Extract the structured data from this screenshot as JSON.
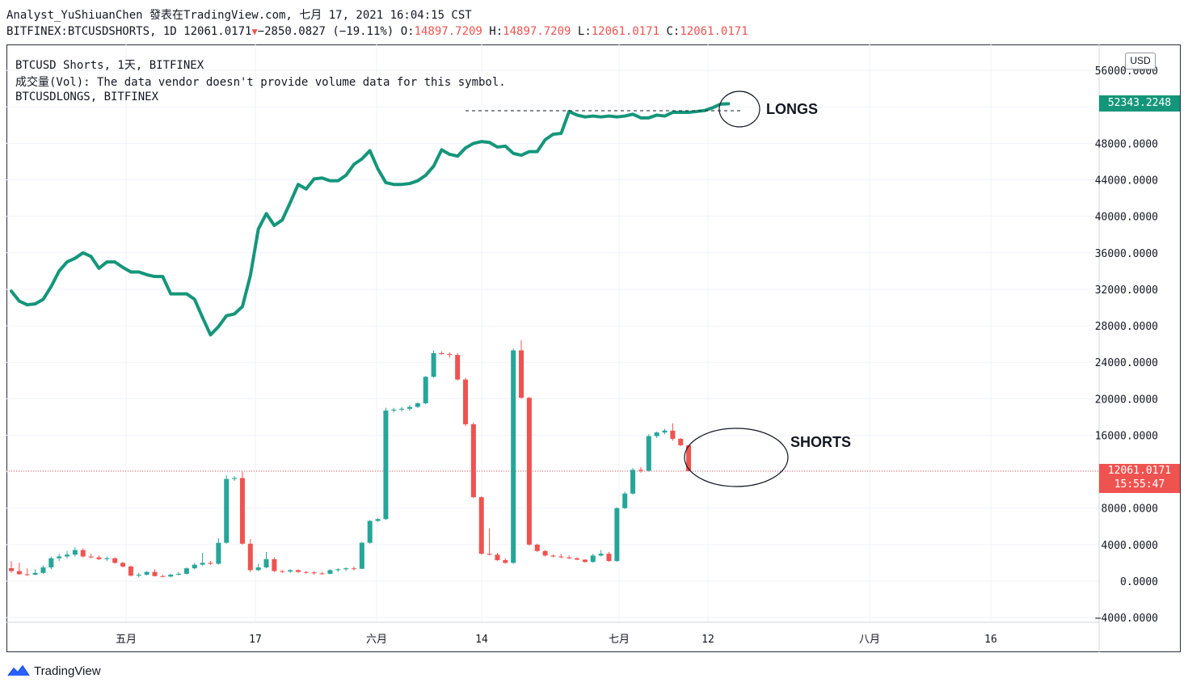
{
  "header": {
    "author_line": "Analyst_YuShiuanChen 發表在TradingView.com, 七月 17, 2021 16:04:15 CST",
    "symbol": "BITFINEX:BTCUSDSHORTS, 1D",
    "last": "12061.0171",
    "change": "−2850.0827 (−19.11%)",
    "o_label": "O:",
    "o_value": "14897.7209",
    "h_label": "H:",
    "h_value": "14897.7209",
    "l_label": "L:",
    "l_value": "12061.0171",
    "c_label": "C:",
    "c_value": "12061.0171"
  },
  "legend": {
    "line1": "BTCUSD Shorts, 1天, BITFINEX",
    "line2": "成交量(Vol): The data vendor doesn't provide volume data for this symbol.",
    "line3": "BTCUSDLONGS, BITFINEX"
  },
  "annotations": {
    "longs": "LONGS",
    "shorts": "SHORTS"
  },
  "price_tags": {
    "longs_last": "52343.2248",
    "shorts_last": "12061.0171",
    "countdown": "15:55:47"
  },
  "currency": "USD",
  "footer": {
    "brand": "TradingView"
  },
  "colors": {
    "up": "#26a69a",
    "down": "#ef5350",
    "longs_line": "#14967a",
    "grid": "#f0f3fa"
  },
  "chart_data": [
    {
      "type": "candlestick",
      "name": "BTCUSD Shorts",
      "x_labels": [
        "五月",
        "17",
        "六月",
        "14",
        "七月",
        "12",
        "八月",
        "16"
      ],
      "y_ticks": [
        "56000.0000",
        "48000.0000",
        "44000.0000",
        "40000.0000",
        "36000.0000",
        "32000.0000",
        "28000.0000",
        "24000.0000",
        "20000.0000",
        "16000.0000",
        "8000.0000",
        "4000.0000",
        "0.0000",
        "−4000.0000"
      ],
      "ylim": [
        -4500,
        57500
      ],
      "candles": [
        [
          1420,
          2200,
          900,
          1100
        ],
        [
          1100,
          2000,
          700,
          750
        ],
        [
          750,
          1400,
          550,
          700
        ],
        [
          700,
          1300,
          650,
          900
        ],
        [
          900,
          1700,
          800,
          1500
        ],
        [
          1500,
          2700,
          1300,
          2500
        ],
        [
          2500,
          3000,
          2200,
          2700
        ],
        [
          2700,
          3300,
          2500,
          2900
        ],
        [
          2900,
          3700,
          2700,
          3400
        ],
        [
          3400,
          3600,
          2600,
          2700
        ],
        [
          2700,
          3000,
          2500,
          2600
        ],
        [
          2600,
          2800,
          2300,
          2400
        ],
        [
          2400,
          2700,
          2200,
          2500
        ],
        [
          2500,
          2600,
          1900,
          2000
        ],
        [
          2000,
          2100,
          1500,
          1600
        ],
        [
          1600,
          1700,
          500,
          600
        ],
        [
          600,
          900,
          400,
          700
        ],
        [
          700,
          1100,
          600,
          1000
        ],
        [
          1000,
          1300,
          500,
          550
        ],
        [
          550,
          700,
          400,
          500
        ],
        [
          500,
          800,
          400,
          700
        ],
        [
          700,
          1000,
          600,
          800
        ],
        [
          800,
          1500,
          700,
          1400
        ],
        [
          1400,
          2000,
          1300,
          1800
        ],
        [
          1800,
          3100,
          1700,
          2000
        ],
        [
          2000,
          2200,
          1800,
          1900
        ],
        [
          1900,
          4700,
          1800,
          4200
        ],
        [
          4200,
          11600,
          4100,
          11200
        ],
        [
          11200,
          11500,
          11000,
          11300
        ],
        [
          11300,
          12000,
          4000,
          4100
        ],
        [
          4100,
          4600,
          1000,
          1200
        ],
        [
          1200,
          1900,
          1100,
          1500
        ],
        [
          1500,
          3200,
          1400,
          2400
        ],
        [
          2400,
          2600,
          1000,
          1100
        ],
        [
          1100,
          1200,
          900,
          1050
        ],
        [
          1050,
          1300,
          900,
          1200
        ],
        [
          1200,
          1300,
          900,
          1000
        ],
        [
          1000,
          1100,
          800,
          950
        ],
        [
          950,
          1100,
          700,
          850
        ],
        [
          850,
          1000,
          700,
          800
        ],
        [
          800,
          1300,
          750,
          1200
        ],
        [
          1200,
          1400,
          1000,
          1300
        ],
        [
          1300,
          1500,
          1100,
          1400
        ],
        [
          1400,
          1600,
          1200,
          1350
        ],
        [
          1350,
          4300,
          1300,
          4200
        ],
        [
          4200,
          6700,
          4100,
          6600
        ],
        [
          6600,
          6900,
          6500,
          6800
        ],
        [
          6800,
          19000,
          6700,
          18700
        ],
        [
          18700,
          19000,
          18500,
          18800
        ],
        [
          18800,
          19100,
          18600,
          18900
        ],
        [
          18900,
          19300,
          18700,
          19100
        ],
        [
          19100,
          19600,
          19000,
          19500
        ],
        [
          19500,
          22500,
          19400,
          22400
        ],
        [
          22400,
          25300,
          22300,
          25000
        ],
        [
          25000,
          25200,
          24800,
          24900
        ],
        [
          24900,
          25100,
          24500,
          24800
        ],
        [
          24800,
          25000,
          22000,
          22100
        ],
        [
          22100,
          22300,
          17000,
          17200
        ],
        [
          17200,
          17400,
          9100,
          9200
        ],
        [
          9200,
          9300,
          2900,
          3000
        ],
        [
          3000,
          5800,
          2800,
          2900
        ],
        [
          2900,
          3100,
          2200,
          2300
        ],
        [
          2300,
          2500,
          1900,
          2000
        ],
        [
          2000,
          25500,
          1900,
          25300
        ],
        [
          25300,
          26400,
          20000,
          20100
        ],
        [
          20100,
          20200,
          3900,
          4000
        ],
        [
          4000,
          4100,
          3200,
          3300
        ],
        [
          3300,
          3400,
          2700,
          2800
        ],
        [
          2800,
          2900,
          2600,
          2700
        ],
        [
          2700,
          3000,
          2500,
          2600
        ],
        [
          2600,
          2800,
          2400,
          2500
        ],
        [
          2500,
          2600,
          2300,
          2350
        ],
        [
          2350,
          2400,
          2000,
          2100
        ],
        [
          2100,
          3000,
          2000,
          2800
        ],
        [
          2800,
          3400,
          2700,
          3000
        ],
        [
          3000,
          3200,
          2100,
          2200
        ],
        [
          2200,
          8100,
          2100,
          8000
        ],
        [
          8000,
          9800,
          7900,
          9600
        ],
        [
          9600,
          12400,
          9500,
          12200
        ],
        [
          12200,
          12500,
          11900,
          12100
        ],
        [
          12100,
          16100,
          12000,
          15900
        ],
        [
          15900,
          16400,
          15700,
          16300
        ],
        [
          16300,
          16700,
          16100,
          16500
        ],
        [
          16500,
          17300,
          15400,
          15600
        ],
        [
          15600,
          15700,
          14800,
          14900
        ],
        [
          14897,
          14897,
          12061,
          12061
        ]
      ]
    },
    {
      "type": "line",
      "name": "BTCUSDLONGS",
      "values": [
        31800,
        30700,
        30300,
        30400,
        30900,
        32300,
        34000,
        35000,
        35400,
        36000,
        35600,
        34300,
        35000,
        35000,
        34400,
        33900,
        33900,
        33600,
        33400,
        33400,
        31500,
        31500,
        31500,
        30900,
        28900,
        27000,
        27900,
        29100,
        29300,
        30100,
        33500,
        38600,
        40300,
        39000,
        39600,
        41500,
        43500,
        43000,
        44100,
        44200,
        43900,
        43900,
        44500,
        45700,
        46300,
        47200,
        45200,
        43700,
        43500,
        43500,
        43600,
        43900,
        44500,
        45500,
        47300,
        46800,
        46600,
        47500,
        48000,
        48200,
        48100,
        47600,
        47700,
        46900,
        46700,
        47100,
        47100,
        48400,
        49000,
        49100,
        51500,
        51100,
        50900,
        51000,
        50900,
        51000,
        50900,
        51000,
        51200,
        50800,
        50800,
        51100,
        51000,
        51400,
        51400,
        51400,
        51500,
        51600,
        51900,
        52300,
        52343
      ]
    }
  ]
}
